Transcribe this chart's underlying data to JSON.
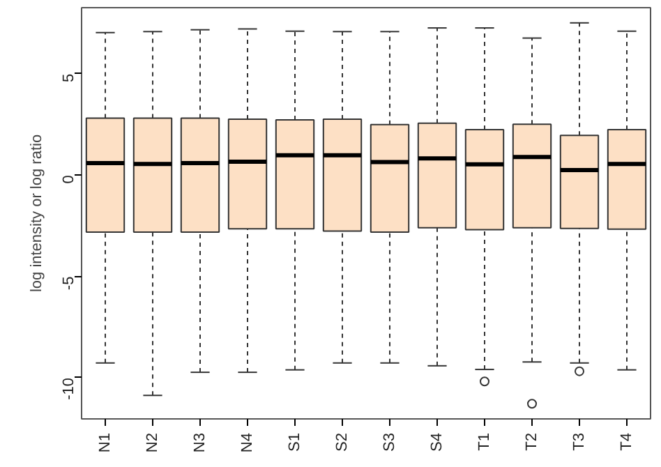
{
  "chart_data": {
    "type": "box",
    "ylabel": "log intensity or log ratio",
    "color": "#fde0c5",
    "categories": [
      "N1",
      "N2",
      "N3",
      "N4",
      "S1",
      "S2",
      "S3",
      "S4",
      "T1",
      "T2",
      "T3",
      "T4"
    ],
    "boxes": [
      {
        "low": -9.27,
        "q1": -2.81,
        "median": 0.59,
        "q3": 2.81,
        "high": 7.03
      },
      {
        "low": -10.87,
        "q1": -2.81,
        "median": 0.55,
        "q3": 2.81,
        "high": 7.08
      },
      {
        "low": -9.73,
        "q1": -2.81,
        "median": 0.59,
        "q3": 2.81,
        "high": 7.17
      },
      {
        "low": -9.73,
        "q1": -2.65,
        "median": 0.66,
        "q3": 2.76,
        "high": 7.21
      },
      {
        "low": -9.61,
        "q1": -2.65,
        "median": 0.98,
        "q3": 2.72,
        "high": 7.1
      },
      {
        "low": -9.27,
        "q1": -2.76,
        "median": 0.98,
        "q3": 2.76,
        "high": 7.08
      },
      {
        "low": -9.27,
        "q1": -2.81,
        "median": 0.64,
        "q3": 2.49,
        "high": 7.08
      },
      {
        "low": -9.41,
        "q1": -2.6,
        "median": 0.82,
        "q3": 2.56,
        "high": 7.26
      },
      {
        "low": -9.59,
        "q1": -2.69,
        "median": 0.53,
        "q3": 2.24,
        "high": 7.26,
        "outliers": [
          -10.18
        ]
      },
      {
        "low": -9.22,
        "q1": -2.6,
        "median": 0.89,
        "q3": 2.51,
        "high": 6.76,
        "outliers": [
          -11.28
        ]
      },
      {
        "low": -9.27,
        "q1": -2.63,
        "median": 0.25,
        "q3": 1.96,
        "high": 7.51,
        "outliers": [
          -9.68
        ]
      },
      {
        "low": -9.61,
        "q1": -2.67,
        "median": 0.55,
        "q3": 2.24,
        "high": 7.1
      }
    ],
    "ylim": [
      -12.03,
      8.26
    ],
    "yticks": [
      -10,
      -5,
      0,
      5
    ],
    "grid": false
  }
}
